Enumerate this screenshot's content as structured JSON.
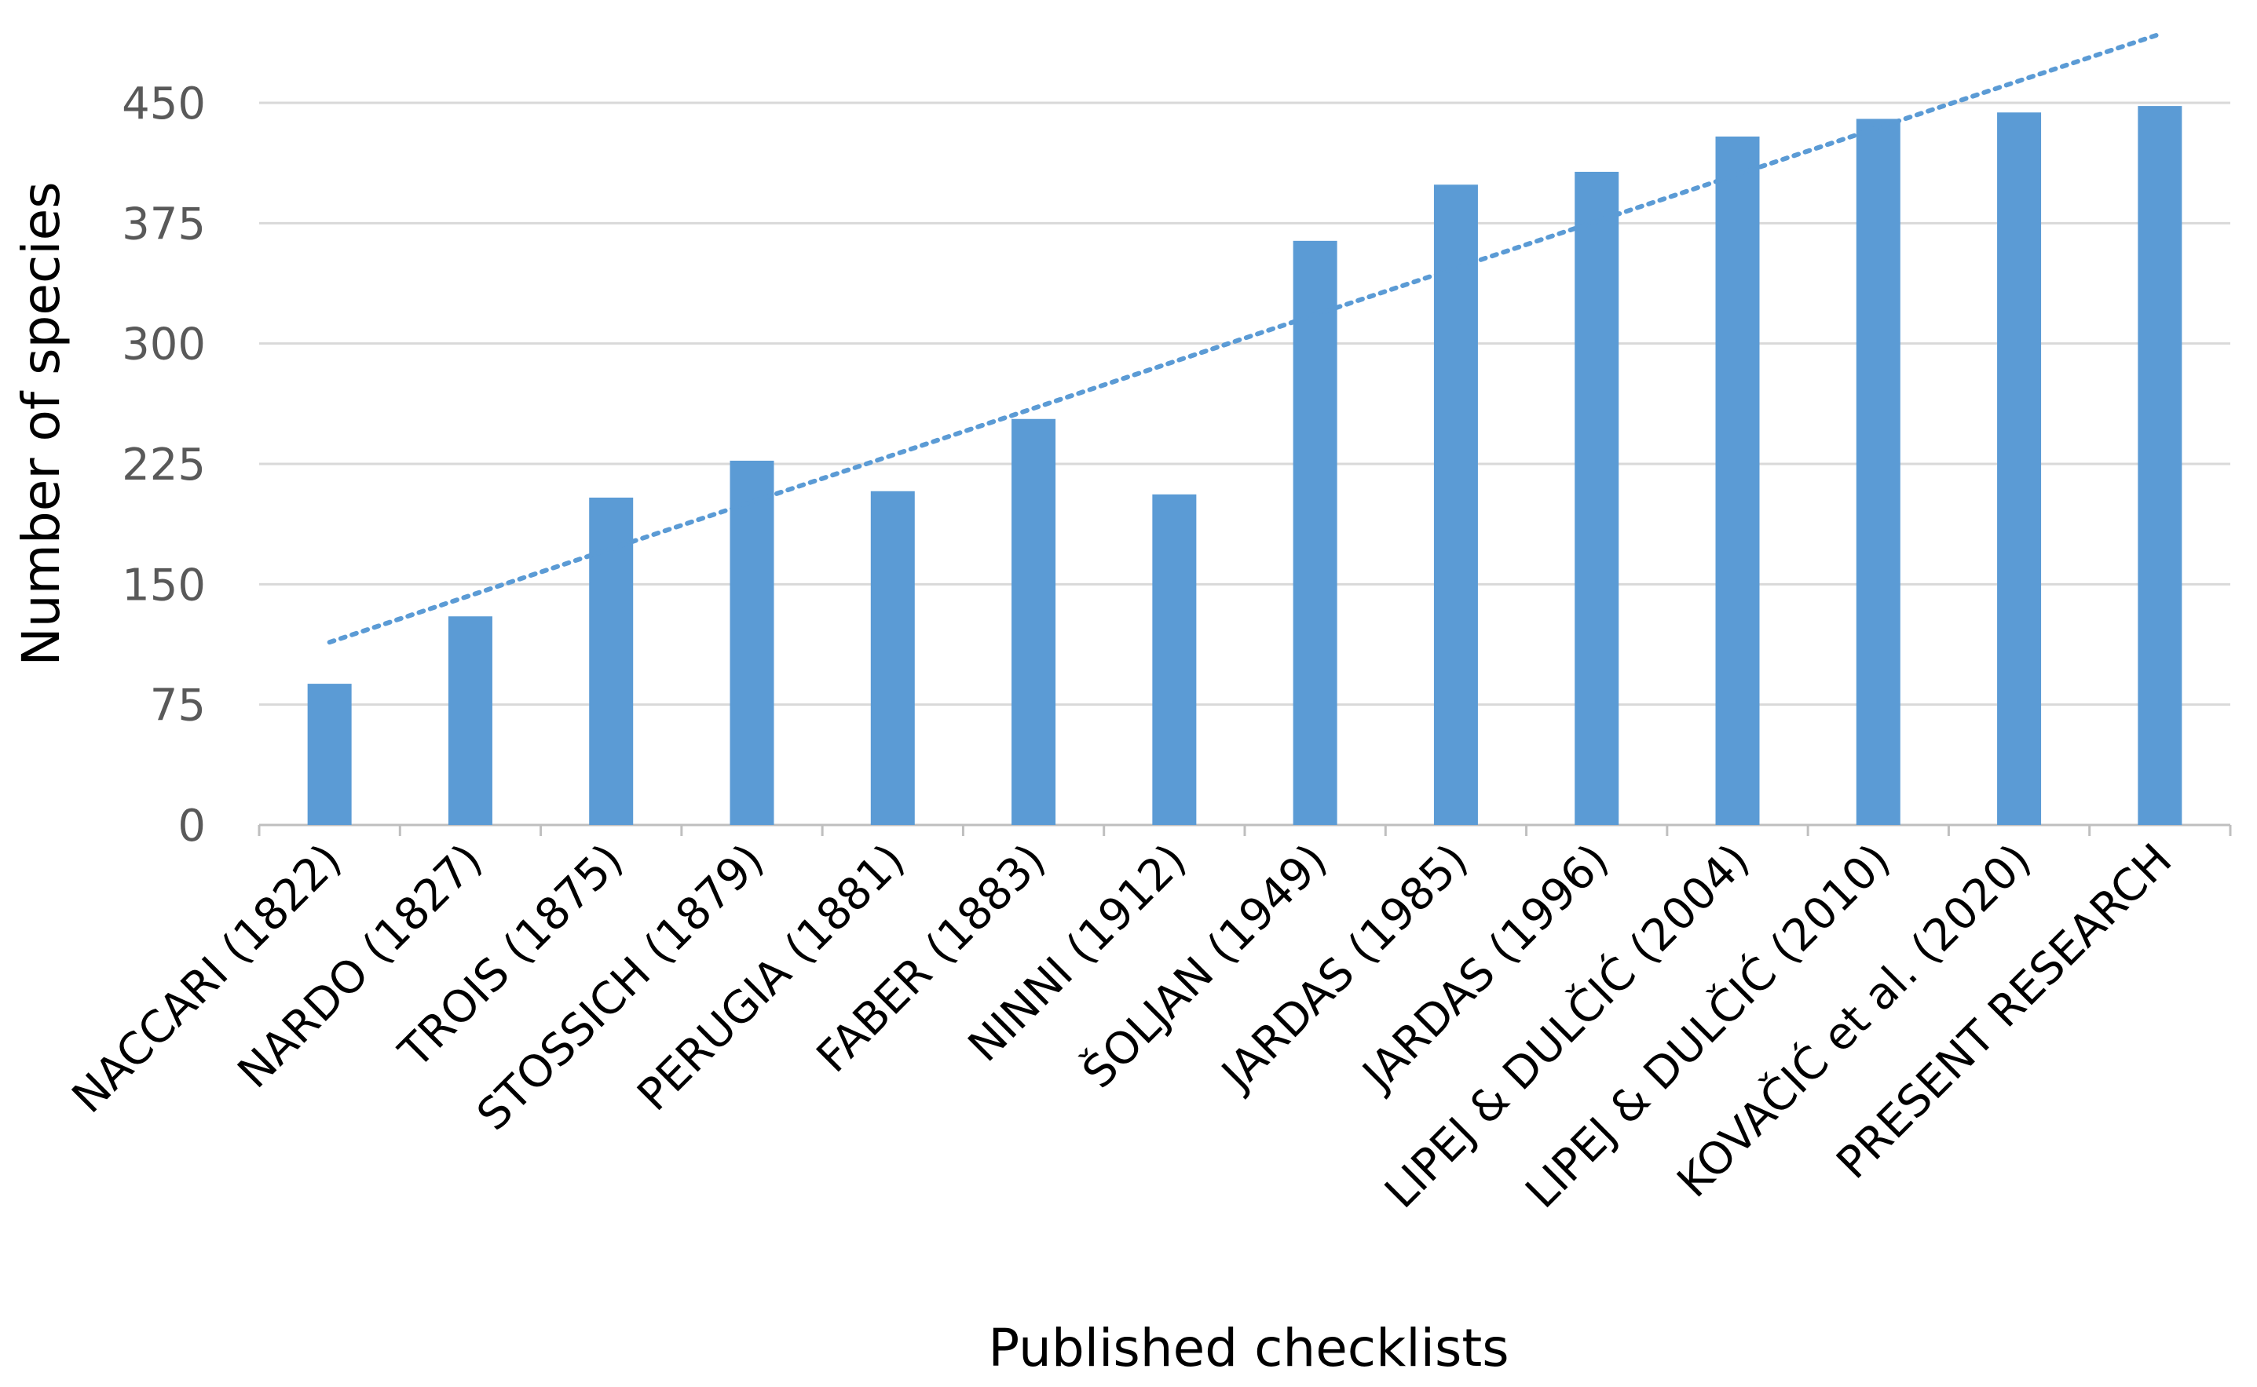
{
  "chart_data": {
    "type": "bar",
    "title": "",
    "xlabel": "Published checklists",
    "ylabel": "Number of species",
    "ylim": [
      0,
      450
    ],
    "yticks": [
      0,
      75,
      150,
      225,
      300,
      375,
      450
    ],
    "grid": true,
    "legend": "none",
    "trendline": "linear (dotted)",
    "categories": [
      "NACCARI (1822)",
      "NARDO (1827)",
      "TROIS (1875)",
      "STOSSICH  (1879)",
      "PERUGIA (1881)",
      "FABER (1883)",
      "NINNI (1912)",
      "ŠOLJAN (1949)",
      "JARDAS (1985)",
      "JARDAS (1996)",
      "LIPEJ & DULČIĆ (2004)",
      "LIPEJ & DULČIĆ (2010)",
      "KOVAČIĆ et al. (2020)",
      "PRESENT RESEARCH"
    ],
    "series": [
      {
        "values": [
          88,
          130,
          204,
          227,
          208,
          253,
          206,
          364,
          399,
          407,
          429,
          440,
          444,
          448
        ]
      }
    ],
    "colors": {
      "bar": "#5b9bd5",
      "trendline": "#5b9bd5",
      "grid": "#d9d9d9",
      "axis": "#bfbfbf",
      "tick_text": "#595959",
      "title_text": "#000000"
    }
  }
}
